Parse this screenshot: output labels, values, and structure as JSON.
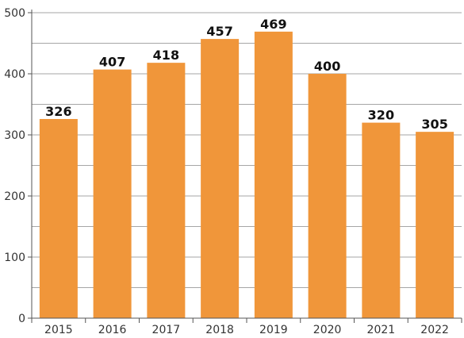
{
  "chart_data": {
    "type": "bar",
    "categories": [
      "2015",
      "2016",
      "2017",
      "2018",
      "2019",
      "2020",
      "2021",
      "2022"
    ],
    "values": [
      326,
      407,
      418,
      457,
      469,
      400,
      320,
      305
    ],
    "data_labels": [
      "326",
      "407",
      "418",
      "457",
      "469",
      "400",
      "320",
      "305"
    ],
    "y_ticks": [
      0,
      100,
      200,
      300,
      400,
      500
    ],
    "y_tick_labels": [
      "0",
      "100",
      "200",
      "300",
      "400",
      "500"
    ],
    "ylim": [
      0,
      500
    ],
    "title": "",
    "xlabel": "",
    "ylabel": "",
    "grid": true,
    "bar_color": "#F0963A",
    "grid_color": "#A6A6A6",
    "axis_color": "#555555"
  }
}
